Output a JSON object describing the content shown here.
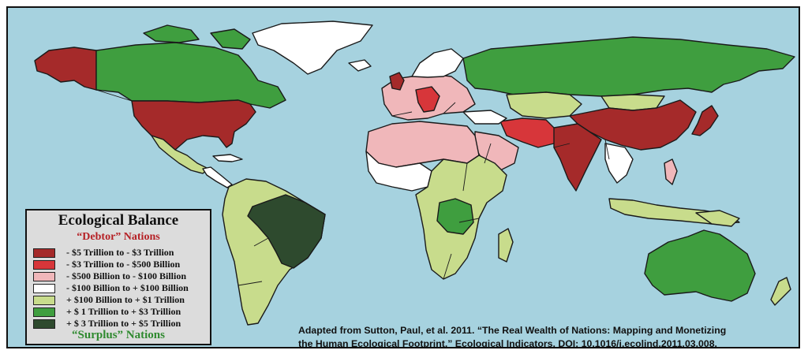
{
  "legend": {
    "title": "Ecological Balance",
    "debtor_label": "“Debtor” Nations",
    "surplus_label": "“Surplus” Nations",
    "items": [
      {
        "label": "- $5 Trillion to - $3 Trillion",
        "color": "#a52a2a"
      },
      {
        "label": "- $3 Trillion to - $500 Billion",
        "color": "#d7363a"
      },
      {
        "label": "- $500 Billion to - $100 Billion",
        "color": "#f0b7ba"
      },
      {
        "label": "- $100 Billion to + $100 Billion",
        "color": "#ffffff"
      },
      {
        "label": "+ $100 Billion to + $1 Trillion",
        "color": "#c8dc8c"
      },
      {
        "label": "+ $ 1 Trillion to + $3 Trillion",
        "color": "#3f9e3f"
      },
      {
        "label": "+ $ 3 Trillion to + $5 Trillion",
        "color": "#2e4a2e"
      }
    ]
  },
  "citation": {
    "line1": "Adapted from Sutton, Paul, et al. 2011. “The Real Wealth of Nations: Mapping and Monetizing",
    "line2": "the Human Ecological Footprint.” Ecological Indicators, DOI: 10.1016/j.ecolind.2011.03.008."
  },
  "colors": {
    "ocean": "#a6d2df",
    "debt_high": "#a52a2a",
    "debt_mid": "#d7363a",
    "debt_low": "#f0b7ba",
    "neutral": "#ffffff",
    "surplus_low": "#c8dc8c",
    "surplus_mid": "#3f9e3f",
    "surplus_high": "#2e4a2e"
  }
}
